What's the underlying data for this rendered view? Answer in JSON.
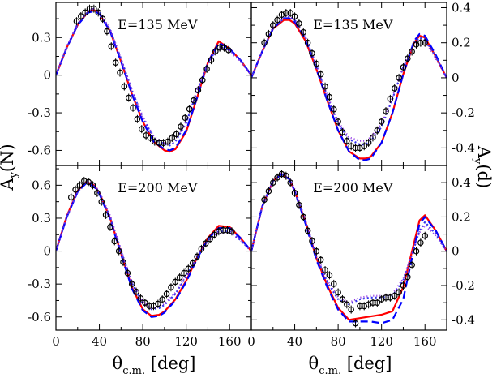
{
  "chart_data": {
    "type": "line",
    "figure": {
      "left_ylabel": "A",
      "left_ylabel_sub": "y",
      "left_ylabel_suffix": "(N)",
      "right_ylabel": "A",
      "right_ylabel_sub": "y",
      "right_ylabel_suffix": "(d)",
      "xlabel": "θ",
      "xlabel_sub": "c.m.",
      "xlabel_suffix": " [deg]"
    },
    "series_styles": [
      {
        "name": "solid-red",
        "color": "#ff0000",
        "dash": "none"
      },
      {
        "name": "dashed-blue",
        "color": "#0000ff",
        "dash": "9,5"
      },
      {
        "name": "dotted-blue",
        "color": "#3333ee",
        "dash": "2,3"
      },
      {
        "name": "dotted-violet",
        "color": "#8a2be2",
        "dash": "1,3"
      }
    ],
    "panels": [
      {
        "id": "nucleon-135",
        "annotation": "E=135 MeV",
        "xlim": [
          0,
          180
        ],
        "ylim": [
          -0.72,
          0.58
        ],
        "xticks": [
          0,
          40,
          80,
          120,
          160
        ],
        "xticklabels": [
          "0",
          "40",
          "80",
          "120",
          "160"
        ],
        "yticks": [
          0.3,
          0,
          -0.3,
          -0.6
        ],
        "yticklabels": [
          "0.3",
          "0",
          "-0.3",
          "-0.6"
        ],
        "yaxis_side": "left",
        "x": [
          0,
          10,
          20,
          30,
          35,
          40,
          50,
          60,
          70,
          80,
          90,
          100,
          105,
          110,
          120,
          130,
          140,
          150,
          160,
          170,
          180
        ],
        "series": [
          {
            "style": "solid-red",
            "values": [
              0,
              0.22,
              0.4,
              0.51,
              0.52,
              0.49,
              0.35,
              0.11,
              -0.15,
              -0.37,
              -0.53,
              -0.6,
              -0.61,
              -0.59,
              -0.45,
              -0.18,
              0.1,
              0.27,
              0.21,
              0.12,
              0
            ]
          },
          {
            "style": "dashed-blue",
            "values": [
              0,
              0.22,
              0.4,
              0.5,
              0.51,
              0.49,
              0.35,
              0.11,
              -0.15,
              -0.37,
              -0.53,
              -0.59,
              -0.6,
              -0.58,
              -0.44,
              -0.18,
              0.1,
              0.26,
              0.21,
              0.12,
              0
            ]
          },
          {
            "style": "dotted-blue",
            "values": [
              0,
              0.22,
              0.41,
              0.51,
              0.53,
              0.5,
              0.36,
              0.13,
              -0.12,
              -0.34,
              -0.5,
              -0.55,
              -0.56,
              -0.53,
              -0.38,
              -0.13,
              0.1,
              0.23,
              0.2,
              0.12,
              0
            ]
          },
          {
            "style": "dotted-violet",
            "values": [
              0,
              0.23,
              0.41,
              0.52,
              0.53,
              0.5,
              0.37,
              0.13,
              -0.12,
              -0.33,
              -0.49,
              -0.54,
              -0.55,
              -0.52,
              -0.37,
              -0.12,
              0.09,
              0.22,
              0.19,
              0.11,
              0
            ]
          }
        ],
        "points_x": [
          19,
          23,
          27,
          31,
          35,
          39,
          43,
          47,
          51,
          55,
          59,
          63,
          67,
          71,
          75,
          79,
          83,
          87,
          91,
          95,
          99,
          103,
          107,
          111,
          115,
          119,
          123,
          127,
          131,
          135,
          139,
          143,
          147,
          151,
          155,
          159
        ],
        "points_y": [
          0.43,
          0.47,
          0.5,
          0.53,
          0.53,
          0.5,
          0.45,
          0.35,
          0.23,
          0.1,
          0.02,
          -0.09,
          -0.18,
          -0.26,
          -0.35,
          -0.43,
          -0.48,
          -0.5,
          -0.53,
          -0.54,
          -0.54,
          -0.53,
          -0.5,
          -0.47,
          -0.41,
          -0.34,
          -0.27,
          -0.2,
          -0.12,
          -0.04,
          0.05,
          0.12,
          0.19,
          0.22,
          0.22,
          0.2
        ]
      },
      {
        "id": "deuteron-135",
        "annotation": "E=135 MeV",
        "xlim": [
          0,
          180
        ],
        "ylim": [
          -0.5,
          0.43
        ],
        "xticks": [
          0,
          40,
          80,
          120,
          160
        ],
        "xticklabels": [
          "0",
          "40",
          "80",
          "120",
          "160"
        ],
        "yticks": [
          0.4,
          0.2,
          0,
          -0.2,
          -0.4
        ],
        "yticklabels": [
          "0.4",
          "0.2",
          "0",
          "-0.2",
          "-0.4"
        ],
        "yaxis_side": "right",
        "x": [
          0,
          10,
          20,
          30,
          35,
          40,
          50,
          60,
          70,
          80,
          90,
          100,
          105,
          110,
          120,
          130,
          140,
          150,
          155,
          160,
          170,
          180
        ],
        "series": [
          {
            "style": "solid-red",
            "values": [
              0,
              0.15,
              0.28,
              0.33,
              0.33,
              0.31,
              0.21,
              0.05,
              -0.13,
              -0.3,
              -0.42,
              -0.46,
              -0.46,
              -0.45,
              -0.37,
              -0.2,
              0.02,
              0.2,
              0.24,
              0.23,
              0.12,
              0
            ]
          },
          {
            "style": "dashed-blue",
            "values": [
              0,
              0.15,
              0.28,
              0.34,
              0.34,
              0.32,
              0.22,
              0.05,
              -0.13,
              -0.3,
              -0.42,
              -0.47,
              -0.47,
              -0.46,
              -0.37,
              -0.2,
              0.02,
              0.21,
              0.25,
              0.24,
              0.13,
              0
            ]
          },
          {
            "style": "dotted-blue",
            "values": [
              0,
              0.15,
              0.28,
              0.34,
              0.35,
              0.33,
              0.23,
              0.07,
              -0.11,
              -0.26,
              -0.35,
              -0.38,
              -0.38,
              -0.36,
              -0.28,
              -0.12,
              0.06,
              0.2,
              0.23,
              0.22,
              0.12,
              0
            ]
          },
          {
            "style": "dotted-violet",
            "values": [
              0,
              0.15,
              0.29,
              0.35,
              0.35,
              0.33,
              0.23,
              0.07,
              -0.1,
              -0.25,
              -0.34,
              -0.36,
              -0.36,
              -0.34,
              -0.26,
              -0.11,
              0.06,
              0.19,
              0.22,
              0.21,
              0.11,
              0
            ]
          }
        ],
        "points_x": [
          12,
          16,
          20,
          24,
          28,
          32,
          36,
          40,
          44,
          48,
          52,
          56,
          60,
          64,
          68,
          72,
          76,
          80,
          84,
          88,
          92,
          96,
          100,
          104,
          108,
          112,
          116,
          120,
          124,
          128,
          132,
          136,
          140,
          144,
          148,
          152,
          156,
          160
        ],
        "points_y": [
          0.2,
          0.25,
          0.3,
          0.33,
          0.36,
          0.37,
          0.37,
          0.35,
          0.31,
          0.26,
          0.2,
          0.14,
          0.08,
          0.02,
          -0.05,
          -0.11,
          -0.18,
          -0.25,
          -0.31,
          -0.36,
          -0.39,
          -0.4,
          -0.4,
          -0.39,
          -0.37,
          -0.34,
          -0.3,
          -0.25,
          -0.19,
          -0.12,
          -0.06,
          0.0,
          0.06,
          0.11,
          0.15,
          0.19,
          0.2,
          0.2
        ]
      },
      {
        "id": "nucleon-200",
        "annotation": "E=200 MeV",
        "xlim": [
          0,
          180
        ],
        "ylim": [
          -0.72,
          0.78
        ],
        "xticks": [
          0,
          40,
          80,
          120,
          160
        ],
        "xticklabels": [
          "0",
          "40",
          "80",
          "120",
          "160"
        ],
        "yticks": [
          0.6,
          0.3,
          0,
          -0.3,
          -0.6
        ],
        "yticklabels": [
          "0.6",
          "0.3",
          "0",
          "-0.3",
          "-0.6"
        ],
        "yaxis_side": "left",
        "x": [
          0,
          10,
          20,
          28,
          35,
          40,
          50,
          60,
          70,
          80,
          88,
          95,
          100,
          110,
          120,
          130,
          140,
          150,
          160,
          170,
          180
        ],
        "series": [
          {
            "style": "solid-red",
            "values": [
              0,
              0.32,
              0.55,
              0.63,
              0.6,
              0.53,
              0.3,
              -0.02,
              -0.33,
              -0.53,
              -0.59,
              -0.58,
              -0.55,
              -0.44,
              -0.27,
              -0.06,
              0.12,
              0.23,
              0.22,
              0.12,
              0
            ]
          },
          {
            "style": "dashed-blue",
            "values": [
              0,
              0.31,
              0.54,
              0.62,
              0.59,
              0.52,
              0.29,
              -0.03,
              -0.34,
              -0.54,
              -0.6,
              -0.59,
              -0.56,
              -0.45,
              -0.28,
              -0.07,
              0.11,
              0.21,
              0.21,
              0.12,
              0
            ]
          },
          {
            "style": "dotted-blue",
            "values": [
              0,
              0.31,
              0.54,
              0.63,
              0.6,
              0.53,
              0.31,
              0.0,
              -0.29,
              -0.48,
              -0.53,
              -0.52,
              -0.49,
              -0.39,
              -0.23,
              -0.05,
              0.1,
              0.18,
              0.18,
              0.1,
              0
            ]
          },
          {
            "style": "dotted-violet",
            "values": [
              0,
              0.31,
              0.55,
              0.64,
              0.61,
              0.54,
              0.32,
              0.01,
              -0.28,
              -0.46,
              -0.52,
              -0.51,
              -0.48,
              -0.38,
              -0.22,
              -0.05,
              0.09,
              0.17,
              0.17,
              0.1,
              0
            ]
          }
        ],
        "points_x": [
          14,
          18,
          22,
          26,
          30,
          34,
          38,
          42,
          46,
          50,
          54,
          58,
          62,
          66,
          70,
          74,
          78,
          82,
          86,
          90,
          94,
          98,
          102,
          106,
          110,
          114,
          118,
          122,
          126,
          130,
          134,
          138,
          142,
          146,
          150,
          154,
          158,
          162
        ],
        "points_y": [
          0.49,
          0.56,
          0.6,
          0.64,
          0.63,
          0.6,
          0.53,
          0.45,
          0.33,
          0.22,
          0.09,
          0.0,
          -0.1,
          -0.2,
          -0.3,
          -0.37,
          -0.43,
          -0.47,
          -0.5,
          -0.5,
          -0.48,
          -0.44,
          -0.39,
          -0.33,
          -0.28,
          -0.24,
          -0.2,
          -0.16,
          -0.11,
          -0.05,
          0.02,
          0.07,
          0.11,
          0.15,
          0.18,
          0.19,
          0.19,
          0.18
        ]
      },
      {
        "id": "deuteron-200",
        "annotation": "E=200 MeV",
        "xlim": [
          0,
          180
        ],
        "ylim": [
          -0.46,
          0.5
        ],
        "xticks": [
          0,
          40,
          80,
          120,
          160
        ],
        "xticklabels": [
          "0",
          "40",
          "80",
          "120",
          "160"
        ],
        "yticks": [
          0.4,
          0.2,
          0,
          -0.2,
          -0.4
        ],
        "yticklabels": [
          "0.4",
          "0.2",
          "0",
          "-0.2",
          "-0.4"
        ],
        "yaxis_side": "right",
        "x": [
          0,
          10,
          20,
          28,
          35,
          40,
          50,
          60,
          70,
          80,
          90,
          100,
          110,
          120,
          130,
          140,
          150,
          155,
          160,
          170,
          180
        ],
        "series": [
          {
            "style": "solid-red",
            "values": [
              0,
              0.26,
              0.41,
              0.45,
              0.42,
              0.35,
              0.17,
              -0.04,
              -0.2,
              -0.33,
              -0.4,
              -0.39,
              -0.38,
              -0.37,
              -0.35,
              -0.21,
              0.05,
              0.18,
              0.21,
              0.12,
              0
            ]
          },
          {
            "style": "dashed-blue",
            "values": [
              0,
              0.26,
              0.41,
              0.45,
              0.42,
              0.35,
              0.16,
              -0.05,
              -0.21,
              -0.34,
              -0.41,
              -0.41,
              -0.41,
              -0.42,
              -0.4,
              -0.28,
              0.02,
              0.16,
              0.2,
              0.12,
              0
            ]
          },
          {
            "style": "dotted-blue",
            "values": [
              0,
              0.26,
              0.41,
              0.45,
              0.42,
              0.35,
              0.17,
              -0.03,
              -0.18,
              -0.28,
              -0.31,
              -0.28,
              -0.27,
              -0.27,
              -0.26,
              -0.17,
              0.02,
              0.12,
              0.17,
              0.1,
              0
            ]
          },
          {
            "style": "dotted-violet",
            "values": [
              0,
              0.26,
              0.41,
              0.46,
              0.43,
              0.36,
              0.18,
              -0.02,
              -0.17,
              -0.27,
              -0.3,
              -0.27,
              -0.26,
              -0.26,
              -0.25,
              -0.16,
              0.02,
              0.11,
              0.15,
              0.09,
              0
            ]
          }
        ],
        "points_x": [
          12,
          16,
          20,
          24,
          28,
          32,
          36,
          40,
          44,
          48,
          52,
          56,
          60,
          64,
          68,
          72,
          76,
          80,
          84,
          88,
          92,
          96,
          100,
          104,
          108,
          112,
          116,
          120,
          124,
          128,
          132,
          136,
          140,
          144,
          148,
          152,
          156,
          160
        ],
        "points_y": [
          0.3,
          0.35,
          0.4,
          0.43,
          0.45,
          0.44,
          0.4,
          0.34,
          0.27,
          0.2,
          0.12,
          0.06,
          0.0,
          -0.05,
          -0.11,
          -0.14,
          -0.19,
          -0.24,
          -0.28,
          -0.31,
          -0.34,
          -0.42,
          -0.32,
          -0.32,
          -0.31,
          -0.3,
          -0.3,
          -0.28,
          -0.27,
          -0.27,
          -0.26,
          -0.24,
          -0.2,
          -0.15,
          -0.08,
          0.0,
          0.05,
          0.09
        ]
      }
    ]
  }
}
